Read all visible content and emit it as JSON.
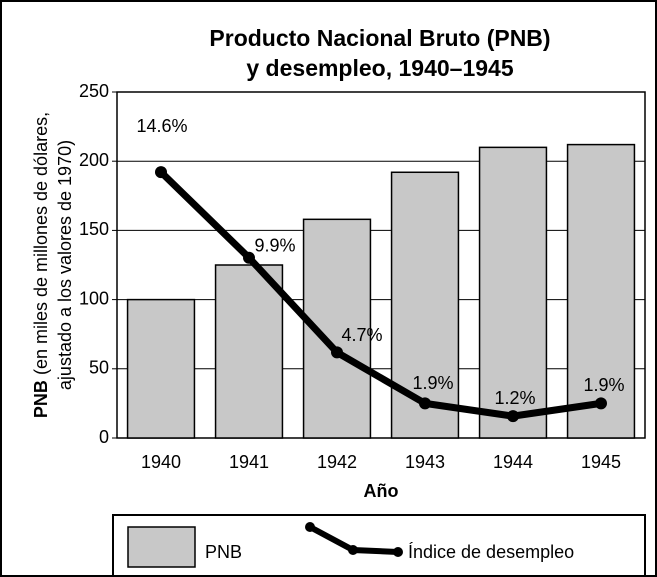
{
  "chart_data": {
    "type": "bar",
    "title": [
      "Producto Nacional Bruto (PNB)",
      "y desempleo, 1940–1945"
    ],
    "ylabel": [
      "PNB",
      "(en miles de millones de dólares,",
      "ajustado a los valores de 1970)"
    ],
    "xlabel": "Año",
    "categories": [
      "1940",
      "1941",
      "1942",
      "1943",
      "1944",
      "1945"
    ],
    "ylim": [
      0,
      250
    ],
    "yticks": [
      0,
      50,
      100,
      150,
      200,
      250
    ],
    "grid": true,
    "y2lim": [
      0,
      19
    ],
    "series": [
      {
        "name": "PNB",
        "type": "bar",
        "color": "#c8c8c8",
        "values": [
          100,
          125,
          158,
          192,
          210,
          212
        ]
      },
      {
        "name": "Índice de desempleo",
        "type": "line",
        "axis": "y2",
        "color": "#000000",
        "values": [
          14.6,
          9.9,
          4.7,
          1.9,
          1.2,
          1.9
        ],
        "value_labels": [
          "14.6%",
          "9.9%",
          "4.7%",
          "1.9%",
          "1.2%",
          "1.9%"
        ]
      }
    ],
    "legend": "bottom"
  }
}
